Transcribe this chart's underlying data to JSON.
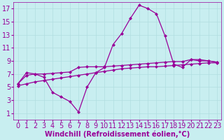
{
  "xlabel": "Windchill (Refroidissement éolien,°C)",
  "bg_color": "#c8eef0",
  "line_color": "#990099",
  "xlim": [
    -0.5,
    23.5
  ],
  "ylim": [
    0,
    18
  ],
  "xticks": [
    0,
    1,
    2,
    3,
    4,
    5,
    6,
    7,
    8,
    9,
    10,
    11,
    12,
    13,
    14,
    15,
    16,
    17,
    18,
    19,
    20,
    21,
    22,
    23
  ],
  "yticks": [
    1,
    3,
    5,
    7,
    9,
    11,
    13,
    15,
    17
  ],
  "series": [
    [
      5.5,
      7.2,
      7.0,
      6.5,
      4.2,
      3.5,
      2.8,
      1.2,
      5.0,
      7.2,
      8.0,
      11.5,
      13.2,
      15.5,
      17.5,
      17.0,
      16.2,
      12.8,
      8.5,
      8.0,
      9.2,
      9.0,
      9.0,
      8.8
    ],
    [
      5.5,
      6.8,
      7.0,
      7.0,
      7.1,
      7.2,
      7.3,
      8.0,
      8.1,
      8.1,
      8.1,
      8.2,
      8.3,
      8.4,
      8.5,
      8.6,
      8.7,
      8.8,
      8.9,
      8.9,
      9.2,
      9.2,
      9.0,
      8.8
    ],
    [
      5.2,
      5.5,
      5.8,
      6.0,
      6.2,
      6.4,
      6.6,
      6.8,
      7.0,
      7.2,
      7.4,
      7.6,
      7.8,
      7.9,
      8.0,
      8.1,
      8.1,
      8.2,
      8.3,
      8.4,
      8.5,
      8.6,
      8.7,
      8.7
    ]
  ],
  "font_color": "#990099",
  "grid_color": "#b0dde0",
  "font_size": 7,
  "marker": "D",
  "marker_size": 2.0,
  "line_width": 0.9
}
